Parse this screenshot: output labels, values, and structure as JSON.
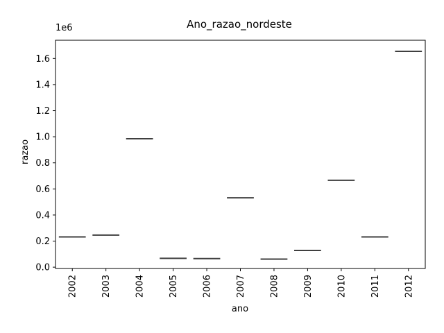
{
  "chart_data": {
    "type": "box",
    "title": "Ano_razao_nordeste",
    "xlabel": "ano",
    "ylabel": "razao",
    "y_offset_label": "1e6",
    "categories": [
      "2002",
      "2003",
      "2004",
      "2005",
      "2006",
      "2007",
      "2008",
      "2009",
      "2010",
      "2011",
      "2012"
    ],
    "values": [
      232000,
      246000,
      985000,
      68000,
      66000,
      532000,
      62000,
      128000,
      666000,
      232000,
      1655000
    ],
    "ylim": [
      -10000,
      1740000
    ],
    "yticks": [
      0,
      200000,
      400000,
      600000,
      800000,
      1000000,
      1200000,
      1400000,
      1600000
    ],
    "ytick_labels": [
      "0.0",
      "0.2",
      "0.4",
      "0.6",
      "0.8",
      "1.0",
      "1.2",
      "1.4",
      "1.6"
    ],
    "line_color": "#3f3f3f",
    "grid": false,
    "legend": "none"
  }
}
